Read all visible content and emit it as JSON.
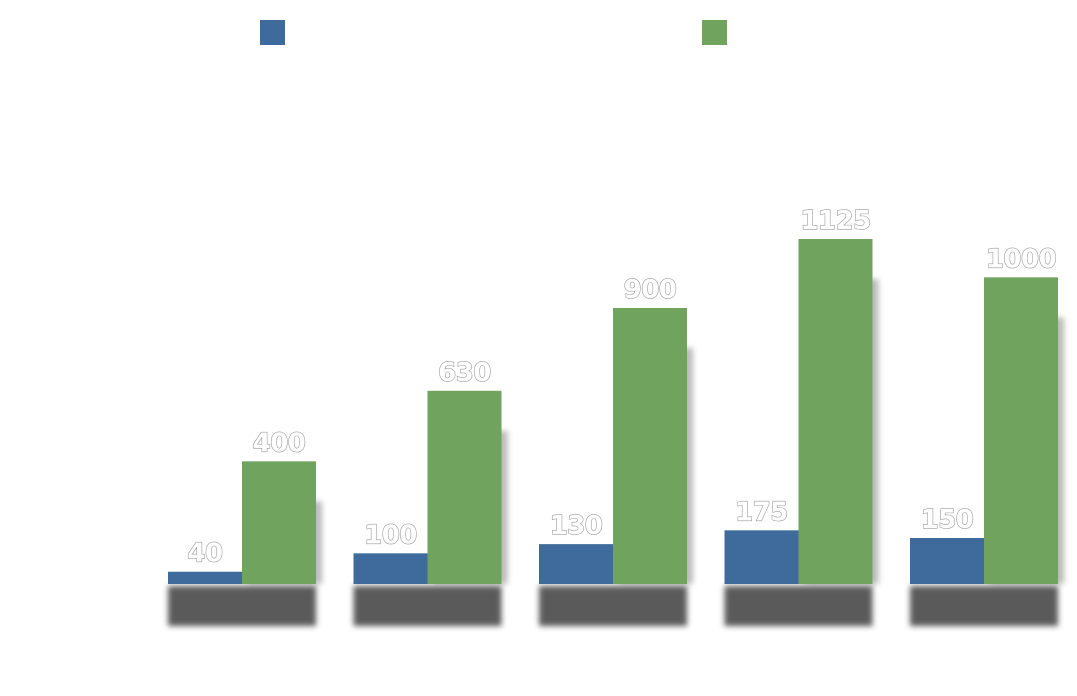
{
  "chart_data": {
    "type": "bar",
    "title": "",
    "xlabel": "",
    "ylabel": "",
    "categories": [
      "",
      "",
      "",
      "",
      ""
    ],
    "ylim": [
      0,
      1125
    ],
    "grid": false,
    "legend_position": "top",
    "series": [
      {
        "color": "#3e6b9b",
        "values": [
          40,
          100,
          130,
          175,
          150
        ]
      },
      {
        "color": "#70a35e",
        "values": [
          400,
          630,
          900,
          1125,
          1000
        ]
      }
    ],
    "value_labels": [
      [
        "40",
        "100",
        "130",
        "175",
        "150"
      ],
      [
        "400",
        "630",
        "900",
        "1125",
        "1000"
      ]
    ]
  }
}
